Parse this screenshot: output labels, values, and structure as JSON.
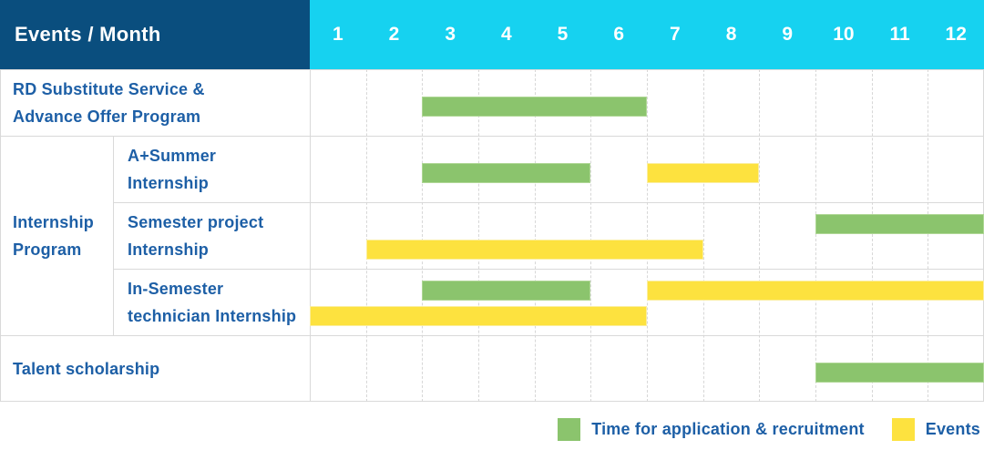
{
  "title": "Events / Month",
  "months": [
    "1",
    "2",
    "3",
    "4",
    "5",
    "6",
    "7",
    "8",
    "9",
    "10",
    "11",
    "12"
  ],
  "colors": {
    "navy": "#0A4E7E",
    "cyan": "#16D2F0",
    "green": "#8BC46D",
    "green_edge": "#AFD795",
    "yellow": "#FDE23F",
    "yellow_edge": "#FBEE9F",
    "label": "#1D5FA6",
    "grid": "#D9D9D9",
    "grid_light": "#D7D7D7"
  },
  "group": {
    "id": "internship-program",
    "label": [
      "Internship",
      "Program"
    ]
  },
  "rows": [
    {
      "id": "rd-substitute-service",
      "label": [
        "RD Substitute Service &",
        "Advance Offer Program"
      ],
      "sub": false,
      "lines": [
        [
          {
            "color": "green",
            "start": 3,
            "end": 7
          }
        ]
      ]
    },
    {
      "id": "a-plus-summer-internship",
      "label": [
        "A+Summer",
        "Internship"
      ],
      "sub": true,
      "lines": [
        [
          {
            "color": "green",
            "start": 3,
            "end": 6
          },
          {
            "color": "yellow",
            "start": 7,
            "end": 9
          }
        ]
      ]
    },
    {
      "id": "semester-project-internship",
      "label": [
        "Semester project",
        "Internship"
      ],
      "sub": true,
      "lines": [
        [
          {
            "color": "green",
            "start": 10,
            "end": 13
          }
        ],
        [
          {
            "color": "yellow",
            "start": 2,
            "end": 8
          }
        ]
      ]
    },
    {
      "id": "in-semester-technician-internship",
      "label": [
        "In-Semester",
        "technician Internship"
      ],
      "sub": true,
      "lines": [
        [
          {
            "color": "green",
            "start": 3,
            "end": 6
          },
          {
            "color": "yellow",
            "start": 7,
            "end": 13
          }
        ],
        [
          {
            "color": "yellow",
            "start": 1,
            "end": 7
          }
        ]
      ]
    },
    {
      "id": "talent-scholarship",
      "label": [
        "Talent scholarship"
      ],
      "sub": false,
      "lines": [
        [
          {
            "color": "green",
            "start": 10,
            "end": 13
          }
        ]
      ]
    }
  ],
  "legend": [
    {
      "color": "green",
      "label": "Time for application & recruitment"
    },
    {
      "color": "yellow",
      "label": "Events"
    }
  ],
  "chart_data": {
    "type": "table",
    "title": "Events / Month",
    "x_axis": {
      "label": "Month",
      "ticks": [
        1,
        2,
        3,
        4,
        5,
        6,
        7,
        8,
        9,
        10,
        11,
        12
      ],
      "range": [
        1,
        12
      ]
    },
    "grid": true,
    "legend_position": "bottom-right",
    "series_legend": [
      {
        "name": "Time for application & recruitment",
        "color": "#8BC46D"
      },
      {
        "name": "Events",
        "color": "#FDE23F"
      }
    ],
    "tasks": [
      {
        "event": "RD Substitute Service & Advance Offer Program",
        "group": null,
        "application_recruitment_months": [
          [
            3,
            6
          ]
        ],
        "event_months": []
      },
      {
        "event": "A+Summer Internship",
        "group": "Internship Program",
        "application_recruitment_months": [
          [
            3,
            5
          ]
        ],
        "event_months": [
          [
            7,
            8
          ]
        ]
      },
      {
        "event": "Semester project Internship",
        "group": "Internship Program",
        "application_recruitment_months": [
          [
            10,
            12
          ]
        ],
        "event_months": [
          [
            2,
            7
          ]
        ]
      },
      {
        "event": "In-Semester technician Internship",
        "group": "Internship Program",
        "application_recruitment_months": [
          [
            3,
            5
          ]
        ],
        "event_months": [
          [
            7,
            12
          ],
          [
            1,
            6
          ]
        ]
      },
      {
        "event": "Talent scholarship",
        "group": null,
        "application_recruitment_months": [
          [
            10,
            12
          ]
        ],
        "event_months": []
      }
    ]
  }
}
